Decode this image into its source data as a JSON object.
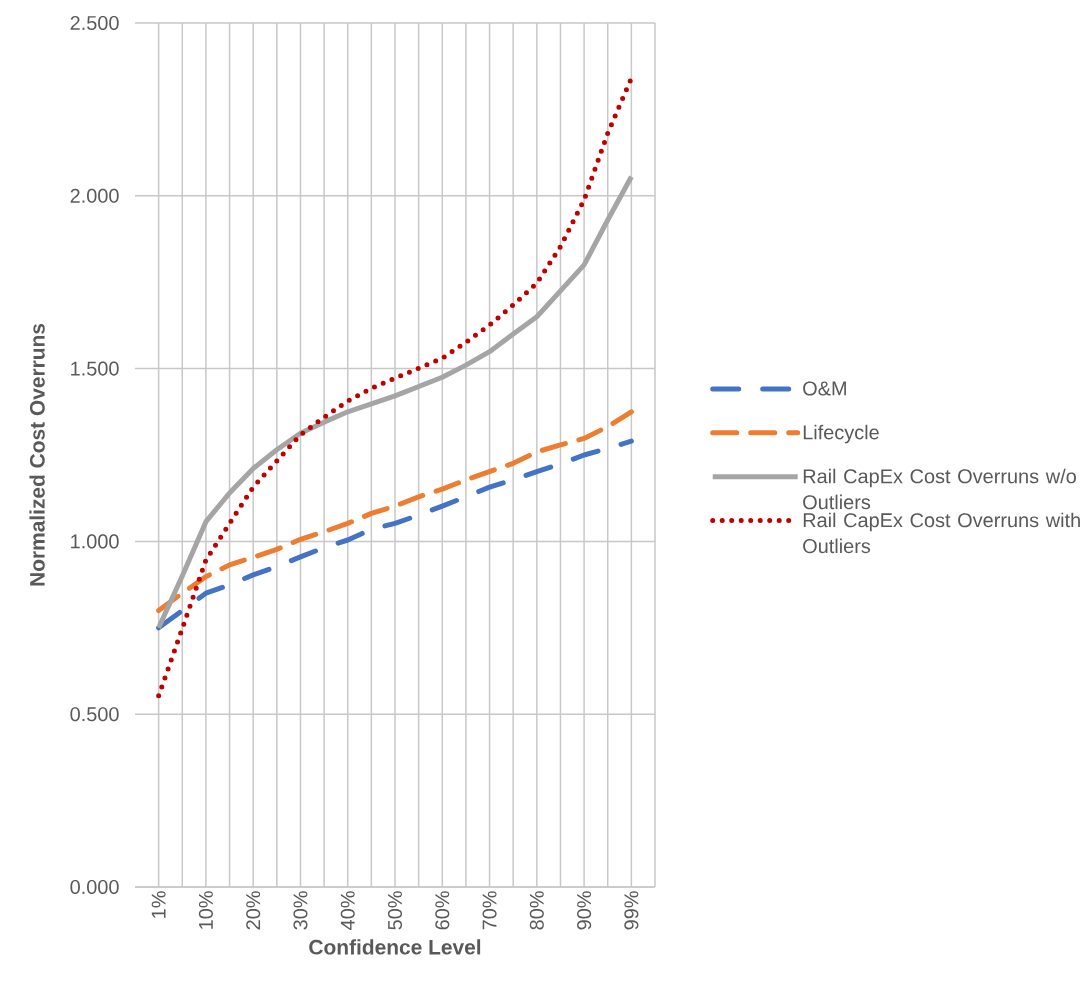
{
  "chart_data": {
    "type": "line",
    "xlabel": "Confidence Level",
    "ylabel": "Normalized Cost Overruns",
    "categories": [
      "1%",
      null,
      "10%",
      null,
      "20%",
      null,
      "30%",
      null,
      "40%",
      null,
      "50%",
      null,
      "60%",
      null,
      "70%",
      null,
      "80%",
      null,
      "90%",
      null,
      "99%"
    ],
    "series": [
      {
        "name": "O&M",
        "color": "#4472c4",
        "line_style": "dashdot",
        "values": [
          0.75,
          0.8,
          0.85,
          0.874,
          0.903,
          0.927,
          0.955,
          0.982,
          1.004,
          1.035,
          1.052,
          1.076,
          1.102,
          1.129,
          1.157,
          1.178,
          1.202,
          1.224,
          1.25,
          1.269,
          1.29
        ]
      },
      {
        "name": "Lifecycle",
        "color": "#ed7d31",
        "line_style": "dashed",
        "values": [
          0.8,
          0.85,
          0.898,
          0.932,
          0.954,
          0.977,
          1.006,
          1.028,
          1.052,
          1.081,
          1.102,
          1.129,
          1.151,
          1.178,
          1.202,
          1.226,
          1.259,
          1.279,
          1.298,
          1.332,
          1.375
        ]
      },
      {
        "name": "Rail CapEx Cost Overruns w/o Outliers",
        "color": "#a5a5a5",
        "line_style": "solid",
        "values": [
          0.75,
          0.9,
          1.057,
          1.14,
          1.211,
          1.265,
          1.313,
          1.345,
          1.375,
          1.398,
          1.421,
          1.448,
          1.475,
          1.51,
          1.549,
          1.6,
          1.65,
          1.725,
          1.8,
          1.93,
          2.055
        ]
      },
      {
        "name": "Rail CapEx Cost Overruns with Outliers",
        "color": "#c00000",
        "line_style": "dotted",
        "values": [
          0.553,
          0.748,
          0.946,
          1.052,
          1.157,
          1.233,
          1.308,
          1.359,
          1.406,
          1.443,
          1.472,
          1.501,
          1.53,
          1.576,
          1.626,
          1.684,
          1.747,
          1.853,
          1.988,
          2.181,
          2.34
        ]
      }
    ],
    "ylim": [
      0,
      2.5
    ],
    "yticks": [
      {
        "value": 0,
        "label": "0.000"
      },
      {
        "value": 0.5,
        "label": "0.500"
      },
      {
        "value": 1,
        "label": "1.000"
      },
      {
        "value": 1.5,
        "label": "1.500"
      },
      {
        "value": 2,
        "label": "2.000"
      },
      {
        "value": 2.5,
        "label": "2.500"
      }
    ],
    "grid": true,
    "legend": "right"
  }
}
